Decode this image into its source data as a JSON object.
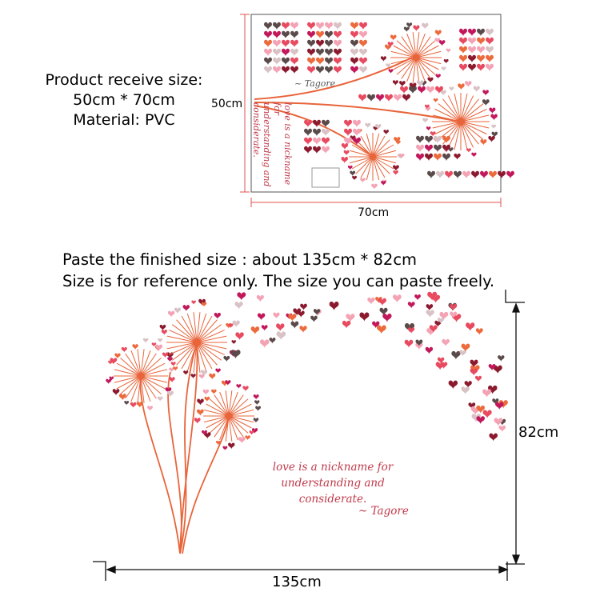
{
  "product_info": {
    "size_line": "Product receive size:",
    "size_value": "50cm * 70cm",
    "material": "Material: PVC"
  },
  "sheet": {
    "width_label": "70cm",
    "height_label": "50cm",
    "quote_lines": [
      "love is a nickname for",
      "understanding and",
      "considerate."
    ],
    "author": "~ Tagore"
  },
  "paste_info": {
    "line1": "Paste the finished size : about 135cm * 82cm",
    "line2": "Size is for reference only. The size you can paste freely."
  },
  "finished": {
    "width_label": "135cm",
    "height_label": "82cm",
    "quote_line1": "love is a nickname for",
    "quote_line2": "understanding and considerate.",
    "author": "~ Tagore"
  },
  "colors": {
    "stem": "#e8643a",
    "dim_line": "#e25050",
    "heart_palette": [
      "#e84a5f",
      "#8b1a2e",
      "#f4a3b5",
      "#5a4a4a",
      "#ec6a3c",
      "#c2185b",
      "#d9c2c6"
    ]
  }
}
